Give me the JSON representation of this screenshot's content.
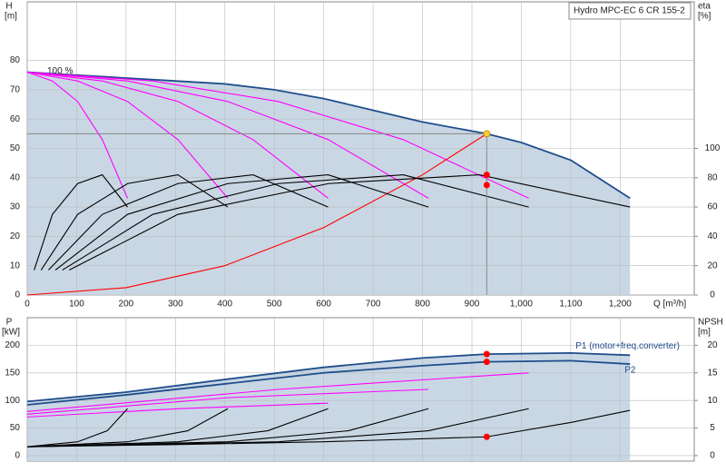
{
  "chart_data": [
    {
      "type": "line",
      "legend_box": "Hydro MPC-EC 6 CR 155-2",
      "annotation": "100 %",
      "y_label": "H",
      "y_unit": "[m]",
      "y2_label": "eta",
      "y2_unit": "[%]",
      "x_label": "Q [m³/h]",
      "xlim": [
        0,
        1350
      ],
      "xticks": [
        0,
        100,
        200,
        300,
        400,
        500,
        600,
        700,
        800,
        900,
        {
          "value": 1000,
          "label": "1,000"
        },
        {
          "value": 1100,
          "label": "1,100"
        },
        {
          "value": 1200,
          "label": "1,200"
        }
      ],
      "ylim": [
        0,
        100
      ],
      "yticks": [
        0,
        10,
        20,
        30,
        40,
        50,
        60,
        70,
        80
      ],
      "y2lim": [
        0,
        200
      ],
      "y2ticks": [
        0,
        20,
        40,
        60,
        80,
        100
      ],
      "grid": true,
      "series": [
        {
          "color": "#1f4e8c",
          "fill": "#c9d7e4",
          "x": [
            0,
            100,
            200,
            300,
            400,
            500,
            600,
            700,
            800,
            930,
            1000,
            1100,
            1220
          ],
          "values": [
            76,
            75,
            74,
            73,
            72,
            70,
            67,
            63,
            59,
            55,
            52,
            46,
            33
          ]
        },
        {
          "color": "#ff00ff",
          "x": [
            0,
            51,
            102,
            152,
            203
          ],
          "values": [
            76,
            73,
            66,
            53,
            33
          ]
        },
        {
          "color": "#ff00ff",
          "x": [
            0,
            102,
            203,
            305,
            406
          ],
          "values": [
            76,
            73,
            66,
            53,
            33
          ]
        },
        {
          "color": "#ff00ff",
          "x": [
            0,
            152,
            305,
            457,
            609
          ],
          "values": [
            76,
            73,
            66,
            53,
            33
          ]
        },
        {
          "color": "#ff00ff",
          "x": [
            0,
            203,
            406,
            609,
            812
          ],
          "values": [
            76,
            73,
            66,
            53,
            33
          ]
        },
        {
          "color": "#ff00ff",
          "x": [
            0,
            254,
            508,
            761,
            1015
          ],
          "values": [
            76,
            73,
            66,
            53,
            33
          ]
        },
        {
          "color": "#ff0000",
          "x": [
            0,
            200,
            400,
            600,
            800,
            930
          ],
          "values": [
            0,
            2.5,
            10,
            23,
            41,
            55
          ]
        },
        {
          "color": "#000000",
          "axis": "y2",
          "x": [
            14,
            51,
            102,
            152,
            203
          ],
          "values": [
            17,
            55,
            76,
            82,
            60
          ]
        },
        {
          "color": "#000000",
          "axis": "y2",
          "x": [
            28,
            102,
            203,
            305,
            406
          ],
          "values": [
            17,
            55,
            76,
            82,
            60
          ]
        },
        {
          "color": "#000000",
          "axis": "y2",
          "x": [
            43,
            152,
            305,
            457,
            609
          ],
          "values": [
            17,
            55,
            76,
            82,
            60
          ]
        },
        {
          "color": "#000000",
          "axis": "y2",
          "x": [
            57,
            203,
            406,
            609,
            812
          ],
          "values": [
            17,
            55,
            76,
            82,
            60
          ]
        },
        {
          "color": "#000000",
          "axis": "y2",
          "x": [
            71,
            254,
            508,
            761,
            1015
          ],
          "values": [
            17,
            55,
            76,
            82,
            60
          ]
        },
        {
          "color": "#000000",
          "axis": "y2",
          "x": [
            85,
            305,
            610,
            915,
            1220
          ],
          "values": [
            17,
            55,
            76,
            82,
            60
          ]
        }
      ],
      "points": [
        {
          "x": 930,
          "y": 55,
          "color": "#ffcc33",
          "guide_lines": true
        },
        {
          "x": 930,
          "y": 82,
          "axis": "y2",
          "color": "#ff0000"
        },
        {
          "x": 930,
          "y": 75,
          "axis": "y2",
          "color": "#ff0000"
        }
      ]
    },
    {
      "type": "line",
      "y_label": "P",
      "y_unit": "[kW]",
      "y2_label": "NPSH",
      "y2_unit": "[m]",
      "xlim": [
        0,
        1350
      ],
      "ylim": [
        -10,
        250
      ],
      "yticks": [
        0,
        50,
        100,
        150,
        200
      ],
      "y2lim": [
        -1,
        25
      ],
      "y2ticks": [
        0,
        5,
        10,
        15,
        20
      ],
      "grid": true,
      "series": [
        {
          "name": "P1 (motor+freq.converter)",
          "color": "#1f4e8c",
          "fill": "#c9d7e4",
          "x": [
            0,
            200,
            400,
            600,
            800,
            930,
            1100,
            1220
          ],
          "values": [
            98,
            115,
            138,
            160,
            177,
            184,
            186,
            182
          ]
        },
        {
          "name": "P2",
          "color": "#1f4e8c",
          "x": [
            0,
            200,
            400,
            600,
            800,
            930,
            1100,
            1220
          ],
          "values": [
            92,
            110,
            130,
            150,
            163,
            170,
            172,
            166
          ]
        },
        {
          "color": "#ff00ff",
          "x": [
            0,
            508,
            1015
          ],
          "values": [
            80,
            120,
            150
          ]
        },
        {
          "color": "#ff00ff",
          "x": [
            0,
            406,
            812
          ],
          "values": [
            75,
            105,
            120
          ]
        },
        {
          "color": "#ff00ff",
          "x": [
            0,
            305,
            609
          ],
          "values": [
            70,
            85,
            95
          ]
        },
        {
          "color": "#000000",
          "axis": "y2",
          "x": [
            0,
            102,
            162,
            203
          ],
          "values": [
            1.6,
            2.5,
            4.5,
            8.5
          ]
        },
        {
          "color": "#000000",
          "axis": "y2",
          "x": [
            0,
            203,
            325,
            406
          ],
          "values": [
            1.6,
            2.5,
            4.5,
            8.5
          ]
        },
        {
          "color": "#000000",
          "axis": "y2",
          "x": [
            0,
            305,
            487,
            609
          ],
          "values": [
            1.6,
            2.5,
            4.5,
            8.5
          ]
        },
        {
          "color": "#000000",
          "axis": "y2",
          "x": [
            0,
            406,
            650,
            812
          ],
          "values": [
            1.6,
            2.5,
            4.5,
            8.5
          ]
        },
        {
          "color": "#000000",
          "axis": "y2",
          "x": [
            0,
            508,
            812,
            1015
          ],
          "values": [
            1.6,
            2.5,
            4.5,
            8.5
          ]
        },
        {
          "color": "#000000",
          "axis": "y2",
          "x": [
            0,
            300,
            600,
            930,
            1100,
            1220
          ],
          "values": [
            1.6,
            2,
            2.5,
            3.4,
            6,
            8.2
          ]
        }
      ],
      "points": [
        {
          "x": 930,
          "y": 184,
          "color": "#ff0000"
        },
        {
          "x": 930,
          "y": 170,
          "color": "#ff0000"
        },
        {
          "x": 930,
          "y": 3.4,
          "axis": "y2",
          "color": "#ff0000"
        }
      ]
    }
  ]
}
